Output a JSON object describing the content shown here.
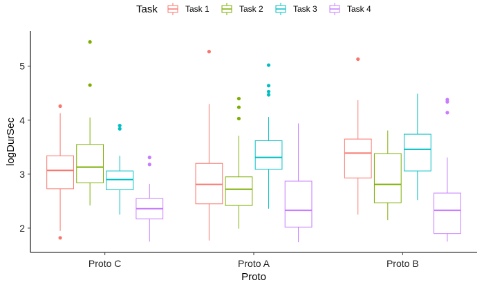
{
  "chart_data": {
    "type": "boxplot",
    "xlabel": "Proto",
    "ylabel": "logDurSec",
    "ylim": [
      1.55,
      5.65
    ],
    "yticks": [
      2,
      3,
      4,
      5
    ],
    "categories": [
      "Proto C",
      "Proto A",
      "Proto B"
    ],
    "grid": false,
    "legend": {
      "title": "Task",
      "position": "top"
    },
    "series": [
      {
        "name": "Task 1",
        "color": "#F8766D",
        "boxes": [
          {
            "category": "Proto C",
            "min": 1.95,
            "q1": 2.73,
            "median": 3.07,
            "q3": 3.34,
            "max": 4.13,
            "outliers": [
              4.26,
              1.82
            ]
          },
          {
            "category": "Proto A",
            "min": 1.77,
            "q1": 2.45,
            "median": 2.81,
            "q3": 3.2,
            "max": 4.3,
            "outliers": [
              5.27
            ]
          },
          {
            "category": "Proto B",
            "min": 2.25,
            "q1": 2.93,
            "median": 3.39,
            "q3": 3.65,
            "max": 4.37,
            "outliers": [
              5.13
            ]
          }
        ]
      },
      {
        "name": "Task 2",
        "color": "#7CAE00",
        "boxes": [
          {
            "category": "Proto C",
            "min": 2.42,
            "q1": 2.84,
            "median": 3.13,
            "q3": 3.55,
            "max": 4.05,
            "outliers": [
              5.45,
              4.65
            ]
          },
          {
            "category": "Proto A",
            "min": 1.99,
            "q1": 2.42,
            "median": 2.72,
            "q3": 2.95,
            "max": 3.71,
            "outliers": [
              4.4,
              4.24,
              4.03
            ]
          },
          {
            "category": "Proto B",
            "min": 2.15,
            "q1": 2.47,
            "median": 2.81,
            "q3": 3.38,
            "max": 3.81,
            "outliers": []
          }
        ]
      },
      {
        "name": "Task 3",
        "color": "#00BFC4",
        "boxes": [
          {
            "category": "Proto C",
            "min": 2.25,
            "q1": 2.71,
            "median": 2.9,
            "q3": 3.06,
            "max": 3.34,
            "outliers": [
              3.9,
              3.84
            ]
          },
          {
            "category": "Proto A",
            "min": 2.36,
            "q1": 3.09,
            "median": 3.31,
            "q3": 3.62,
            "max": 4.06,
            "outliers": [
              5.02,
              4.64,
              4.53,
              4.47
            ]
          },
          {
            "category": "Proto B",
            "min": 2.52,
            "q1": 3.06,
            "median": 3.46,
            "q3": 3.74,
            "max": 4.49,
            "outliers": []
          }
        ]
      },
      {
        "name": "Task 4",
        "color": "#C77CFF",
        "boxes": [
          {
            "category": "Proto C",
            "min": 1.75,
            "q1": 2.17,
            "median": 2.36,
            "q3": 2.55,
            "max": 2.82,
            "outliers": [
              3.31,
              3.18
            ]
          },
          {
            "category": "Proto A",
            "min": 1.74,
            "q1": 2.02,
            "median": 2.33,
            "q3": 2.87,
            "max": 3.94,
            "outliers": []
          },
          {
            "category": "Proto B",
            "min": 1.75,
            "q1": 1.9,
            "median": 2.33,
            "q3": 2.65,
            "max": 3.31,
            "outliers": [
              4.38,
              4.34,
              4.14
            ]
          }
        ]
      }
    ]
  }
}
